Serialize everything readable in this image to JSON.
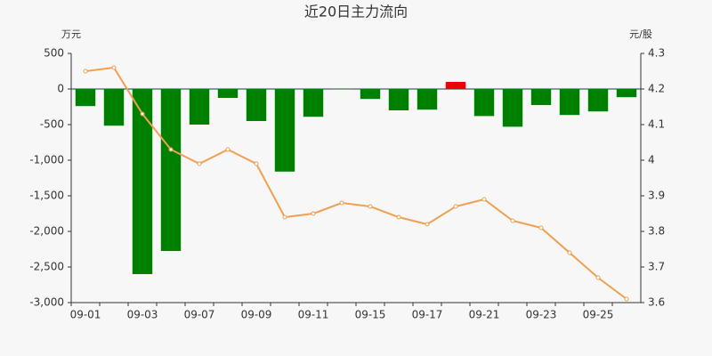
{
  "chart_data": {
    "type": "bar-line",
    "title": "近20日主力流向",
    "y_axis_label": "万元",
    "y2_axis_label": "元/股",
    "categories": [
      "09-01",
      null,
      "09-03",
      null,
      "09-07",
      null,
      "09-09",
      null,
      "09-11",
      null,
      "09-15",
      null,
      "09-17",
      null,
      "09-21",
      null,
      "09-23",
      null,
      "09-25",
      null
    ],
    "series": [
      {
        "type": "bar",
        "color": "#008000",
        "positive_color": "#ee0000",
        "values": [
          -240,
          -515,
          -2600,
          -2275,
          -500,
          -125,
          -450,
          -1160,
          -390,
          -5,
          -140,
          -300,
          -290,
          100,
          -380,
          -530,
          -225,
          -365,
          -315,
          -115
        ]
      },
      {
        "type": "line",
        "axis": "y2",
        "color": "#f0a050",
        "values": [
          4.25,
          4.26,
          4.13,
          4.03,
          3.99,
          4.03,
          3.99,
          3.84,
          3.85,
          3.88,
          3.87,
          3.84,
          3.82,
          3.87,
          3.89,
          3.83,
          3.81,
          3.74,
          3.67,
          3.61
        ]
      }
    ],
    "ylim": [
      -3000,
      500
    ],
    "yticks": [
      {
        "value": -3000,
        "label": "-3,000"
      },
      {
        "value": -2500,
        "label": "-2,500"
      },
      {
        "value": -2000,
        "label": "-2,000"
      },
      {
        "value": -1500,
        "label": "-1,500"
      },
      {
        "value": -1000,
        "label": "-1,000"
      },
      -500,
      0,
      500
    ],
    "y2lim": [
      3.6,
      4.3
    ],
    "y2ticks": [
      3.6,
      3.7,
      3.8,
      3.9,
      4,
      4.1,
      4.2,
      4.3
    ]
  }
}
